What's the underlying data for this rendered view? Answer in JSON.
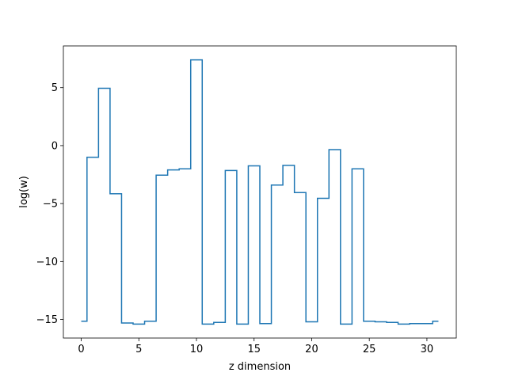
{
  "chart_data": {
    "type": "line",
    "drawstyle": "steps-mid",
    "title": "",
    "xlabel": "z dimension",
    "ylabel": "log(w)",
    "xlim": [
      -1.55,
      32.55
    ],
    "ylim": [
      -16.6,
      8.6
    ],
    "x_ticks": [
      0,
      5,
      10,
      15,
      20,
      25,
      30
    ],
    "x_tick_labels": [
      "0",
      "5",
      "10",
      "15",
      "20",
      "25",
      "30"
    ],
    "y_ticks": [
      -15,
      -10,
      -5,
      0,
      5
    ],
    "y_tick_labels": [
      "−15",
      "−10",
      "−5",
      "0",
      "5"
    ],
    "grid": false,
    "legend": false,
    "color": "#1f77b4",
    "series": [
      {
        "x": [
          0,
          1,
          2,
          3,
          4,
          5,
          6,
          7,
          8,
          9,
          10,
          11,
          12,
          13,
          14,
          15,
          16,
          17,
          18,
          19,
          20,
          21,
          22,
          23,
          24,
          25,
          26,
          27,
          28,
          29,
          30,
          31
        ],
        "values": [
          -15.15,
          -1.0,
          4.95,
          -4.15,
          -15.3,
          -15.4,
          -15.15,
          -2.55,
          -2.1,
          -2.0,
          7.4,
          -15.4,
          -15.25,
          -2.15,
          -15.4,
          -1.75,
          -15.35,
          -3.4,
          -1.7,
          -4.05,
          -15.2,
          -4.55,
          -0.35,
          -15.4,
          -2.0,
          -15.15,
          -15.2,
          -15.25,
          -15.4,
          -15.35,
          -15.35,
          -15.15
        ]
      }
    ]
  }
}
